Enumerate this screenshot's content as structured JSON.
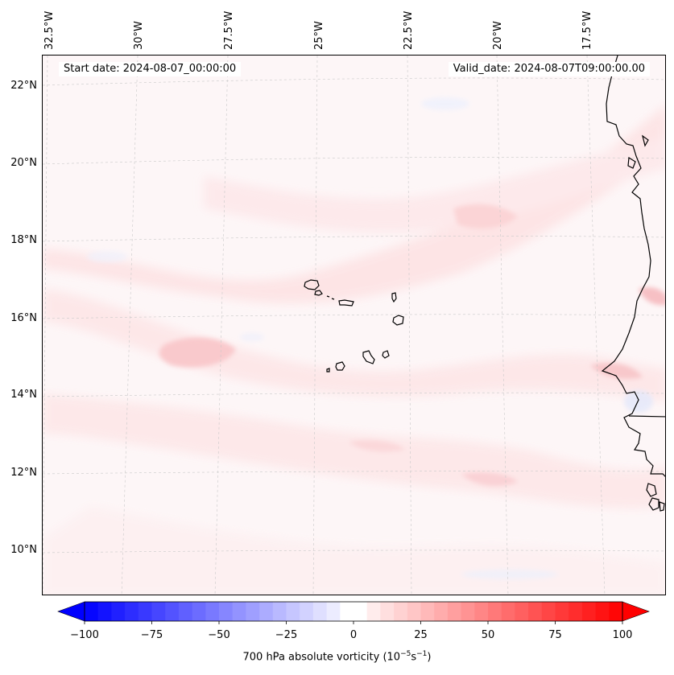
{
  "map": {
    "start_date": "Start date: 2024-08-07_00:00:00",
    "valid_date": "Valid_date: 2024-08-07T09:00:00.00",
    "longitude_labels": [
      "32.5°W",
      "30°W",
      "27.5°W",
      "25°W",
      "22.5°W",
      "20°W",
      "17.5°W"
    ],
    "latitude_labels": [
      "22°N",
      "20°N",
      "18°N",
      "16°N",
      "14°N",
      "12°N",
      "10°N"
    ],
    "features": [
      "Cape Verde islands",
      "West African coastline"
    ]
  },
  "colorbar": {
    "ticks": [
      "−100",
      "−75",
      "−50",
      "−25",
      "0",
      "25",
      "50",
      "75",
      "100"
    ],
    "label": "700 hPa absolute vorticity (10",
    "label_exp1": "−5",
    "label_mid": "s",
    "label_exp2": "−1",
    "label_end": ")",
    "vmin": -100,
    "vmax": 100,
    "colors": {
      "negative": "#0000ff",
      "zero": "#ffffff",
      "positive": "#ff0000"
    }
  }
}
